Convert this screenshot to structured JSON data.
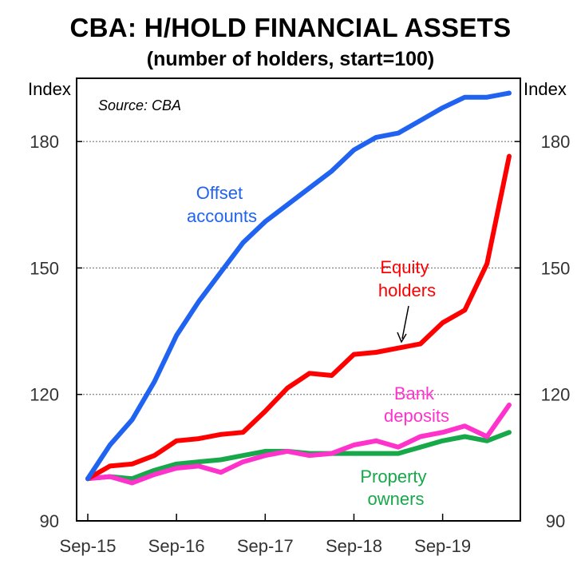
{
  "title": "CBA: H/HOLD FINANCIAL ASSETS",
  "subtitle": "(number of holders, start=100)",
  "colors": {
    "offset": "#1f63f0",
    "equity": "#ff0000",
    "bank": "#ff33cc",
    "property": "#17a84a"
  },
  "chart_data": {
    "type": "line",
    "title": "CBA: H/HOLD FINANCIAL ASSETS",
    "subtitle": "(number of holders, start=100)",
    "source": "Source: CBA",
    "ylabel_left": "Index",
    "ylabel_right": "Index",
    "ylim": [
      90,
      195
    ],
    "yticks": [
      90,
      120,
      150,
      180
    ],
    "ytick_labels": [
      "90",
      "120",
      "150",
      "180"
    ],
    "xticks": [
      {
        "label": "Sep-15",
        "index": 0
      },
      {
        "label": "Sep-16",
        "index": 4
      },
      {
        "label": "Sep-17",
        "index": 8
      },
      {
        "label": "Sep-18",
        "index": 12
      },
      {
        "label": "Sep-19",
        "index": 16
      }
    ],
    "n_points": 20,
    "gridlines": [
      120,
      150,
      180
    ],
    "series": [
      {
        "name": "Offset accounts",
        "label_lines": [
          "Offset",
          "accounts"
        ],
        "color_key": "offset",
        "values": [
          100,
          108,
          114,
          123,
          134,
          142,
          149,
          156,
          161,
          165,
          169,
          173,
          178,
          181,
          182,
          185,
          188,
          190.5,
          190.5,
          191.5
        ]
      },
      {
        "name": "Equity holders",
        "label_lines": [
          "Equity",
          "holders"
        ],
        "color_key": "equity",
        "values": [
          100,
          103,
          103.5,
          105.5,
          109,
          109.5,
          110.5,
          111,
          116,
          121.5,
          125,
          124.5,
          129.5,
          130,
          131,
          132,
          137,
          140,
          151,
          176.5
        ]
      },
      {
        "name": "Bank deposits",
        "label_lines": [
          "Bank",
          "deposits"
        ],
        "color_key": "bank",
        "values": [
          100,
          100.5,
          99,
          101,
          102.5,
          103,
          101.5,
          104,
          105.5,
          106.5,
          105.5,
          106,
          108,
          109,
          107.5,
          110,
          111,
          112.5,
          110,
          117.5
        ]
      },
      {
        "name": "Property owners",
        "label_lines": [
          "Property",
          "owners"
        ],
        "color_key": "property",
        "values": [
          100,
          100.5,
          100,
          102,
          103.5,
          104,
          104.5,
          105.5,
          106.5,
          106.5,
          106,
          106,
          106,
          106,
          106,
          107.5,
          109,
          110,
          109,
          111
        ]
      }
    ]
  }
}
